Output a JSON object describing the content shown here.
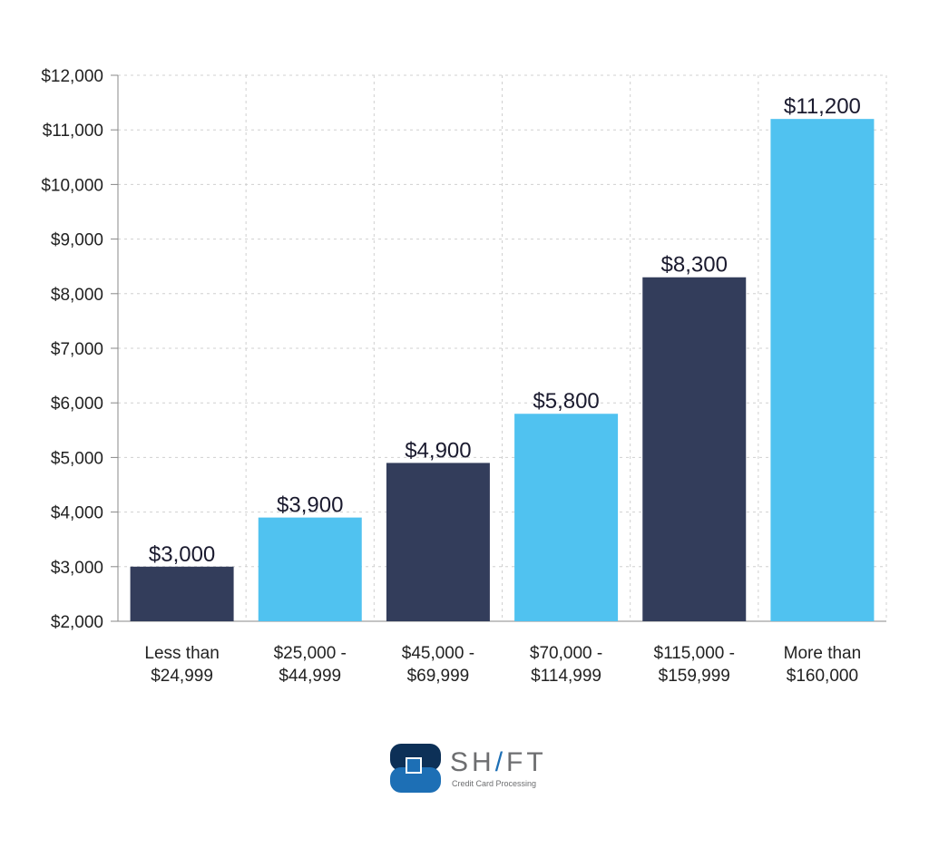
{
  "chart_data": {
    "type": "bar",
    "title": "",
    "xlabel": "",
    "ylabel": "",
    "categories": [
      [
        "Less than",
        "$24,999"
      ],
      [
        "$25,000 -",
        "$44,999"
      ],
      [
        "$45,000 -",
        "$69,999"
      ],
      [
        "$70,000 -",
        "$114,999"
      ],
      [
        "$115,000 -",
        "$159,999"
      ],
      [
        "More than",
        "$160,000"
      ]
    ],
    "values": [
      3000,
      3900,
      4900,
      5800,
      8300,
      11200
    ],
    "data_labels": [
      "$3,000",
      "$3,900",
      "$4,900",
      "$5,800",
      "$8,300",
      "$11,200"
    ],
    "ylim": [
      2000,
      12000
    ],
    "yticks": [
      2000,
      3000,
      4000,
      5000,
      6000,
      7000,
      8000,
      9000,
      10000,
      11000,
      12000
    ],
    "ytick_labels": [
      "$2,000",
      "$3,000",
      "$4,000",
      "$5,000",
      "$6,000",
      "$7,000",
      "$8,000",
      "$9,000",
      "$10,000",
      "$11,000",
      "$12,000"
    ],
    "grid": true,
    "bar_colors": [
      "#333d5b",
      "#50c2f0",
      "#333d5b",
      "#50c2f0",
      "#333d5b",
      "#50c2f0"
    ]
  },
  "logo": {
    "name": "SHIFT",
    "tagline": "Credit Card Processing",
    "colors": {
      "dark": "#0d3057",
      "blue": "#1d6fb5",
      "text": "#6d6e70"
    }
  }
}
